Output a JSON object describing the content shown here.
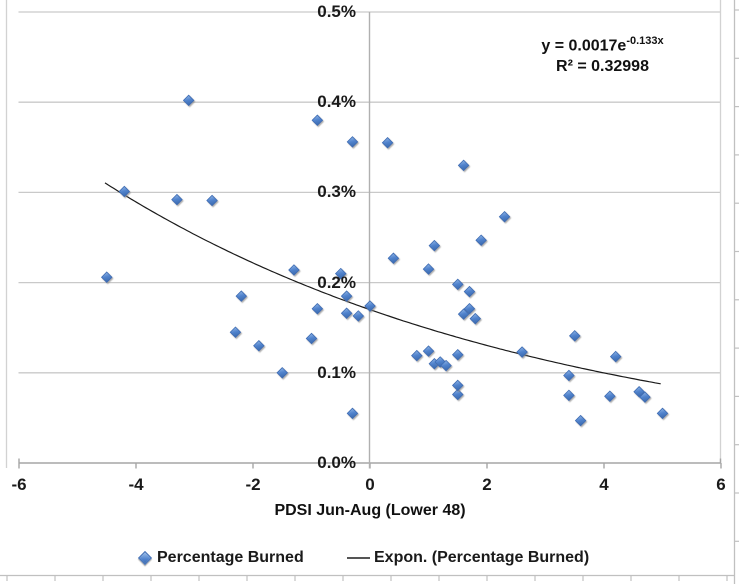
{
  "colors": {
    "background": "#ffffff",
    "gridline": "#c9c9c9",
    "plot_border": "#d2d2d2",
    "axis_line": "#a6a6a6",
    "y_axis_line": "#b0b0b0",
    "text": "#1a1a1a",
    "marker_fill_top": "#9dc0ea",
    "marker_fill_mid": "#5183cd",
    "marker_fill_bottom": "#3d6cb0",
    "marker_stroke": "#3e6cb3",
    "trendline": "#1a1a1a",
    "legend_line": "#555555",
    "worksheet_edge": "#c0c0c0"
  },
  "chart_data": {
    "type": "scatter",
    "xlabel": "PDSI Jun-Aug (Lower 48)",
    "ylabel": "",
    "xlim": [
      -6,
      6
    ],
    "ylim_percent": [
      0.0,
      0.5
    ],
    "x_ticks": [
      -6,
      -4,
      -2,
      0,
      2,
      4,
      6
    ],
    "x_tick_labels": [
      "-6",
      "-4",
      "-2",
      "0",
      "2",
      "4",
      "6"
    ],
    "y_tick_labels": [
      "0.0%",
      "0.1%",
      "0.2%",
      "0.3%",
      "0.4%",
      "0.5%"
    ],
    "grid": "horizontal-only",
    "legend_position": "bottom",
    "series": [
      {
        "name": "Percentage Burned",
        "type": "scatter",
        "marker": "diamond",
        "points_unit": "[PDSI, percent burned]",
        "points": [
          [
            -4.5,
            0.206
          ],
          [
            -4.2,
            0.301
          ],
          [
            -3.3,
            0.292
          ],
          [
            -3.1,
            0.402
          ],
          [
            -2.7,
            0.291
          ],
          [
            -2.3,
            0.145
          ],
          [
            -2.2,
            0.185
          ],
          [
            -1.9,
            0.13
          ],
          [
            -1.5,
            0.1
          ],
          [
            -1.3,
            0.214
          ],
          [
            -1.0,
            0.138
          ],
          [
            -0.9,
            0.38
          ],
          [
            -0.9,
            0.171
          ],
          [
            -0.5,
            0.21
          ],
          [
            -0.4,
            0.185
          ],
          [
            -0.4,
            0.166
          ],
          [
            -0.3,
            0.356
          ],
          [
            -0.3,
            0.055
          ],
          [
            -0.2,
            0.163
          ],
          [
            0.0,
            0.174
          ],
          [
            0.3,
            0.355
          ],
          [
            0.4,
            0.227
          ],
          [
            0.8,
            0.119
          ],
          [
            1.0,
            0.215
          ],
          [
            1.0,
            0.124
          ],
          [
            1.1,
            0.11
          ],
          [
            1.1,
            0.241
          ],
          [
            1.2,
            0.112
          ],
          [
            1.3,
            0.108
          ],
          [
            1.5,
            0.12
          ],
          [
            1.5,
            0.198
          ],
          [
            1.5,
            0.076
          ],
          [
            1.5,
            0.086
          ],
          [
            1.6,
            0.33
          ],
          [
            1.7,
            0.19
          ],
          [
            1.7,
            0.171
          ],
          [
            1.6,
            0.165
          ],
          [
            1.8,
            0.16
          ],
          [
            1.9,
            0.247
          ],
          [
            2.3,
            0.273
          ],
          [
            2.6,
            0.123
          ],
          [
            3.4,
            0.097
          ],
          [
            3.4,
            0.075
          ],
          [
            3.5,
            0.141
          ],
          [
            3.6,
            0.047
          ],
          [
            4.1,
            0.074
          ],
          [
            4.2,
            0.118
          ],
          [
            4.6,
            0.079
          ],
          [
            4.7,
            0.073
          ],
          [
            5.0,
            0.055
          ]
        ]
      },
      {
        "name": "Expon. (Percentage Burned)",
        "type": "exponential-trendline",
        "a": 0.0017,
        "b": -0.133,
        "x_range": [
          -4.53,
          5.01
        ],
        "equation_base": "y = 0.0017e",
        "equation_exponent": "-0.133x",
        "r2_label": "R² = 0.32998",
        "r_squared": 0.32998
      }
    ]
  },
  "legend": {
    "items": [
      {
        "label": "Percentage Burned",
        "marker": "diamond"
      },
      {
        "label": "Expon. (Percentage Burned)",
        "marker": "line"
      }
    ]
  }
}
